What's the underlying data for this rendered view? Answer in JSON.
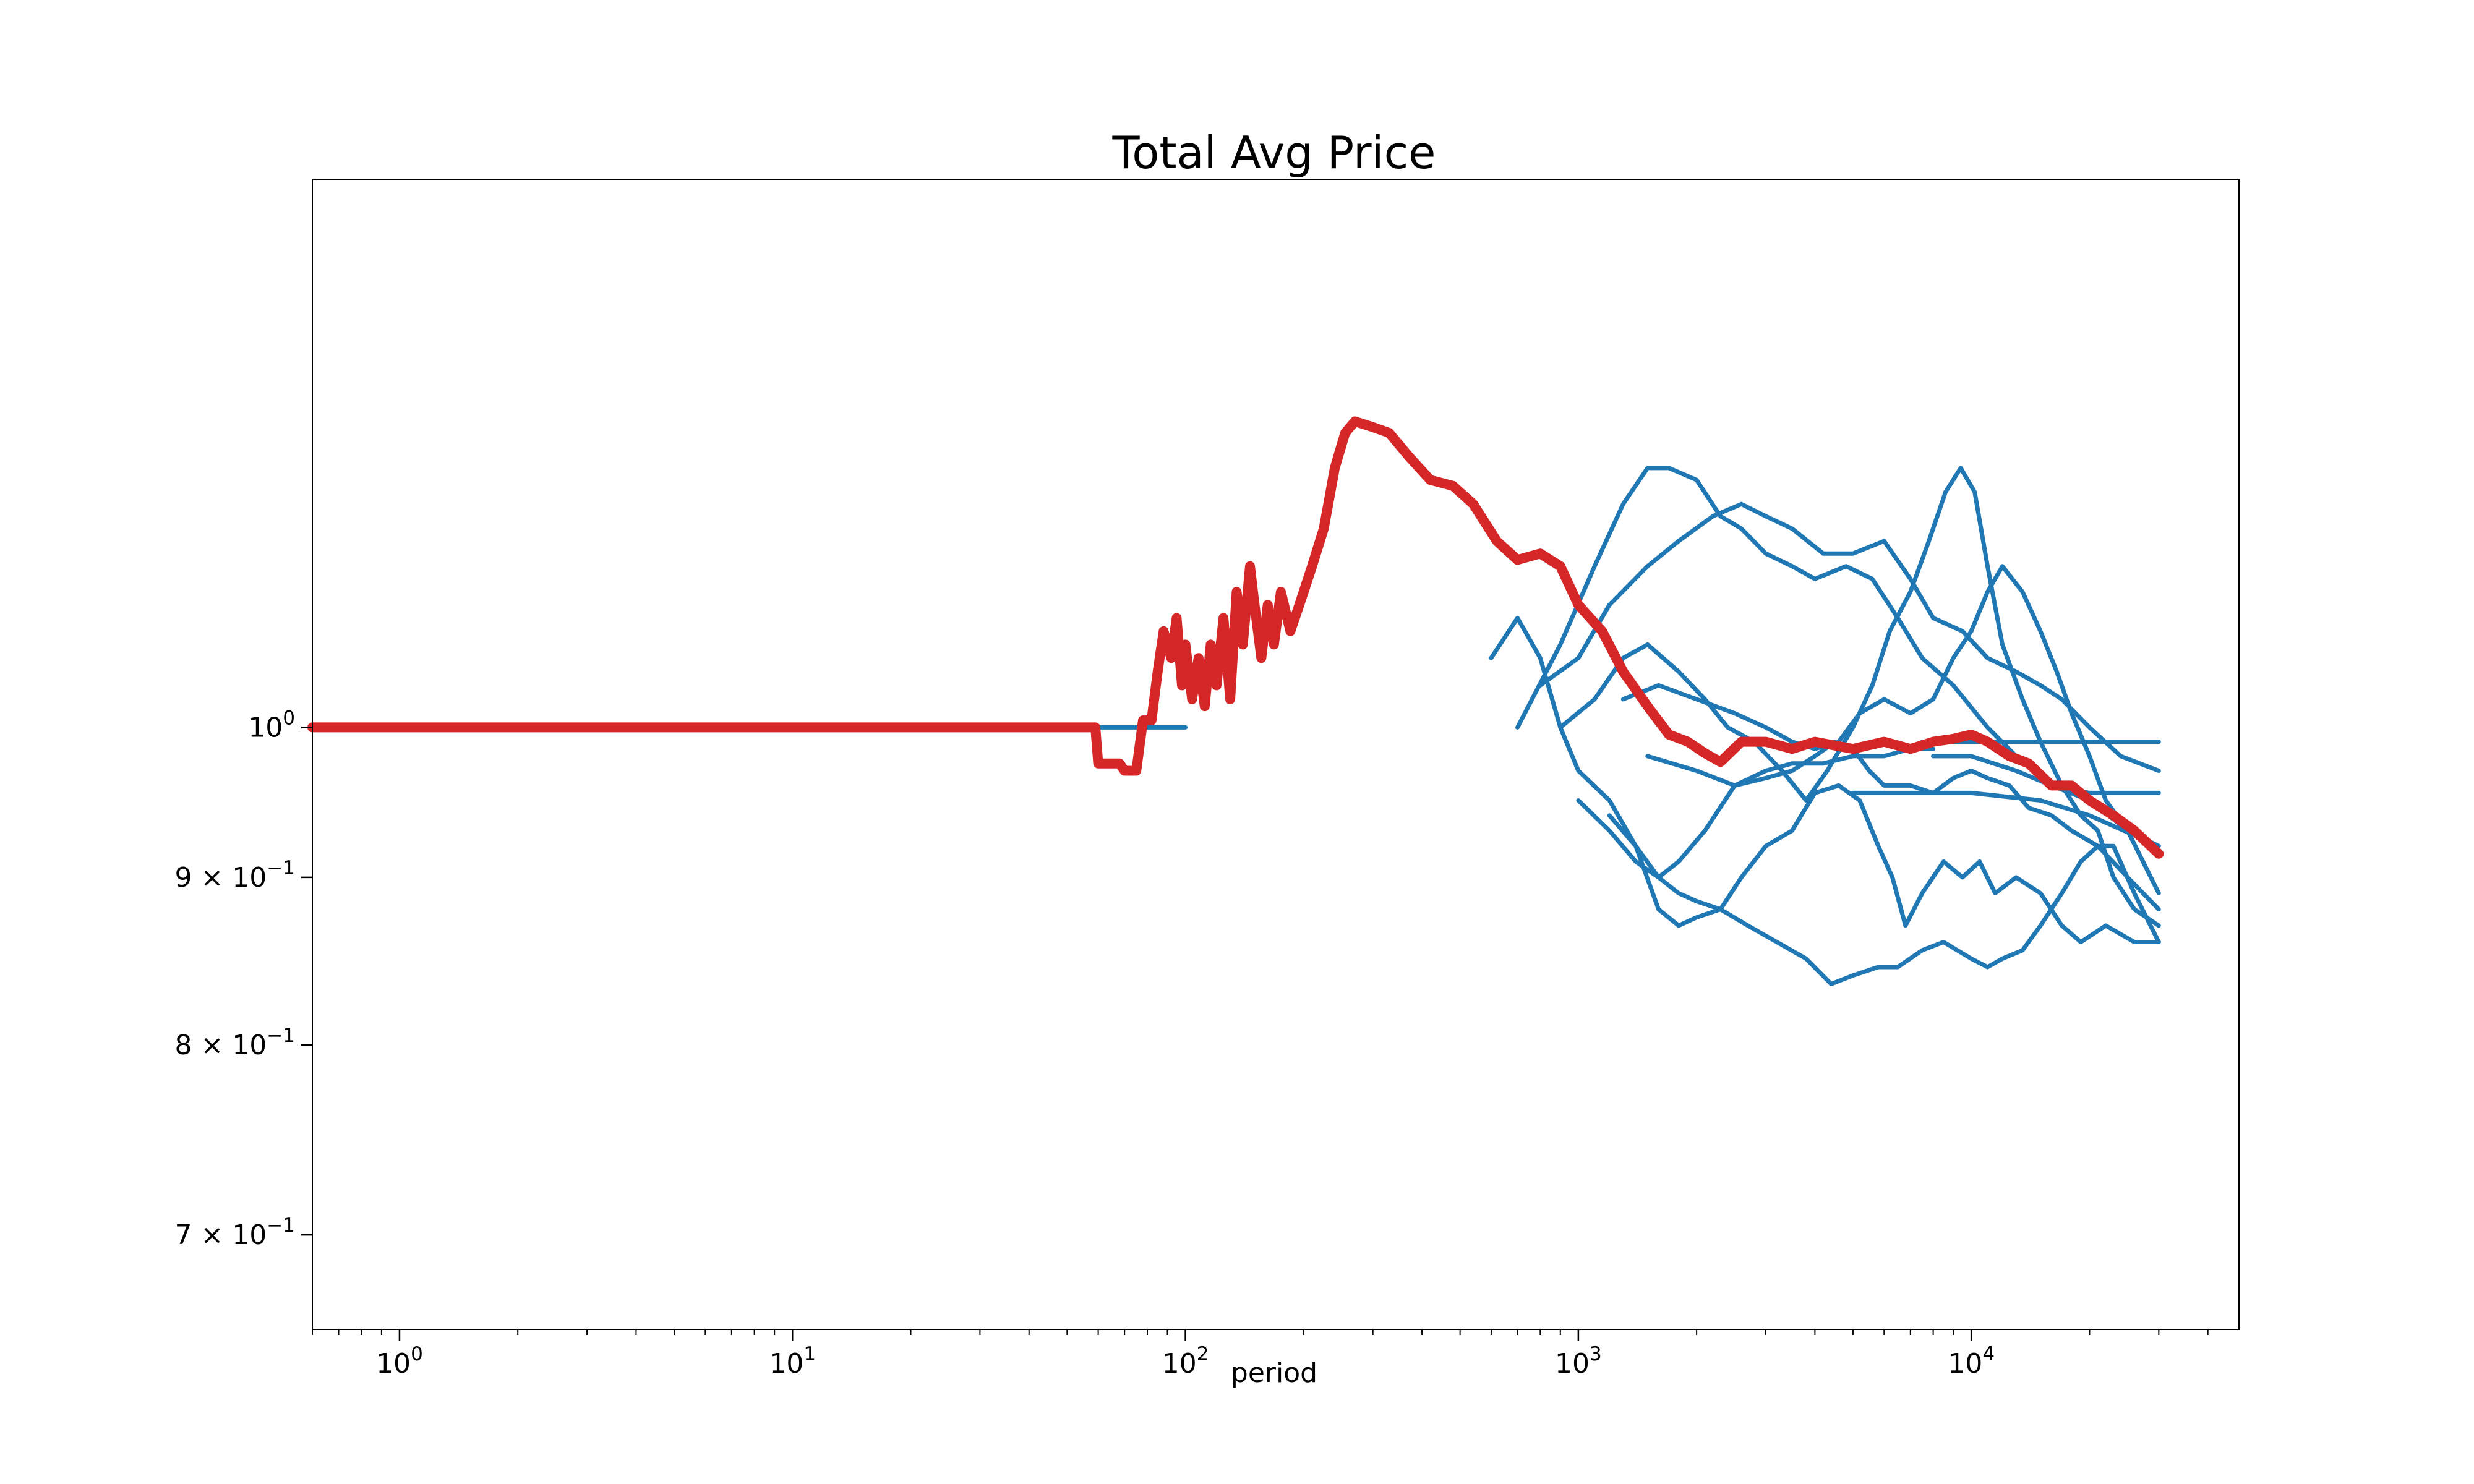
{
  "chart_data": {
    "type": "line",
    "title": "Total Avg Price",
    "xlabel": "period",
    "ylabel": "",
    "xscale": "log",
    "yscale": "log",
    "xlim": [
      0.6,
      48000
    ],
    "ylim": [
      0.655,
      1.47
    ],
    "grid": false,
    "x_ticks": [
      {
        "value": 1,
        "base": "10",
        "exp": "0"
      },
      {
        "value": 10,
        "base": "10",
        "exp": "1"
      },
      {
        "value": 100,
        "base": "10",
        "exp": "2"
      },
      {
        "value": 1000,
        "base": "10",
        "exp": "3"
      },
      {
        "value": 10000,
        "base": "10",
        "exp": "4"
      }
    ],
    "y_ticks": [
      {
        "value": 1.0,
        "mant": "",
        "base": "10",
        "exp": "0"
      },
      {
        "value": 0.9,
        "mant": "9 × ",
        "base": "10",
        "exp": "−1"
      },
      {
        "value": 0.8,
        "mant": "8 × ",
        "base": "10",
        "exp": "−1"
      },
      {
        "value": 0.7,
        "mant": "7 × ",
        "base": "10",
        "exp": "−1"
      }
    ],
    "colors": {
      "runs": "#1f77b4",
      "average": "#d62728",
      "axes": "#000000"
    },
    "series": [
      {
        "role": "average",
        "points": [
          [
            0.6,
            1.0
          ],
          [
            59,
            1.0
          ],
          [
            60,
            0.975
          ],
          [
            68,
            0.975
          ],
          [
            70,
            0.97
          ],
          [
            75,
            0.97
          ],
          [
            78,
            1.005
          ],
          [
            82,
            1.005
          ],
          [
            85,
            1.04
          ],
          [
            88,
            1.07
          ],
          [
            92,
            1.05
          ],
          [
            95,
            1.08
          ],
          [
            98,
            1.03
          ],
          [
            100,
            1.06
          ],
          [
            104,
            1.02
          ],
          [
            108,
            1.05
          ],
          [
            112,
            1.015
          ],
          [
            116,
            1.06
          ],
          [
            120,
            1.03
          ],
          [
            125,
            1.08
          ],
          [
            130,
            1.02
          ],
          [
            135,
            1.1
          ],
          [
            140,
            1.06
          ],
          [
            146,
            1.12
          ],
          [
            150,
            1.09
          ],
          [
            156,
            1.05
          ],
          [
            162,
            1.09
          ],
          [
            168,
            1.06
          ],
          [
            175,
            1.1
          ],
          [
            185,
            1.07
          ],
          [
            195,
            1.09
          ],
          [
            210,
            1.12
          ],
          [
            225,
            1.15
          ],
          [
            240,
            1.2
          ],
          [
            255,
            1.23
          ],
          [
            270,
            1.24
          ],
          [
            300,
            1.235
          ],
          [
            330,
            1.23
          ],
          [
            370,
            1.21
          ],
          [
            420,
            1.19
          ],
          [
            480,
            1.185
          ],
          [
            540,
            1.17
          ],
          [
            620,
            1.14
          ],
          [
            700,
            1.125
          ],
          [
            800,
            1.13
          ],
          [
            900,
            1.12
          ],
          [
            1000,
            1.09
          ],
          [
            1150,
            1.07
          ],
          [
            1300,
            1.04
          ],
          [
            1500,
            1.015
          ],
          [
            1700,
            0.995
          ],
          [
            1900,
            0.99
          ],
          [
            2100,
            0.982
          ],
          [
            2300,
            0.976
          ],
          [
            2600,
            0.99
          ],
          [
            3000,
            0.99
          ],
          [
            3500,
            0.985
          ],
          [
            4000,
            0.99
          ],
          [
            5000,
            0.985
          ],
          [
            6000,
            0.99
          ],
          [
            7000,
            0.985
          ],
          [
            8000,
            0.99
          ],
          [
            9000,
            0.992
          ],
          [
            10000,
            0.995
          ],
          [
            11000,
            0.99
          ],
          [
            12500,
            0.98
          ],
          [
            14000,
            0.975
          ],
          [
            16000,
            0.96
          ],
          [
            18000,
            0.96
          ],
          [
            20000,
            0.95
          ],
          [
            23000,
            0.94
          ],
          [
            26000,
            0.93
          ],
          [
            30000,
            0.915
          ]
        ]
      },
      {
        "role": "run",
        "points": [
          [
            60,
            1.0
          ],
          [
            100,
            1.0
          ]
        ]
      },
      {
        "role": "run",
        "points": [
          [
            700,
            1.0
          ],
          [
            900,
            1.06
          ],
          [
            1100,
            1.12
          ],
          [
            1300,
            1.17
          ],
          [
            1500,
            1.2
          ],
          [
            1700,
            1.2
          ],
          [
            2000,
            1.19
          ],
          [
            2300,
            1.16
          ],
          [
            2600,
            1.15
          ],
          [
            3000,
            1.13
          ],
          [
            3500,
            1.12
          ],
          [
            4000,
            1.11
          ],
          [
            4800,
            1.12
          ],
          [
            5600,
            1.11
          ],
          [
            6500,
            1.08
          ],
          [
            7500,
            1.05
          ],
          [
            9000,
            1.03
          ],
          [
            11000,
            1.0
          ],
          [
            13000,
            0.98
          ],
          [
            16000,
            0.96
          ],
          [
            20000,
            0.95
          ],
          [
            25000,
            0.93
          ],
          [
            30000,
            0.92
          ]
        ]
      },
      {
        "role": "run",
        "points": [
          [
            800,
            1.03
          ],
          [
            1000,
            1.05
          ],
          [
            1200,
            1.09
          ],
          [
            1500,
            1.12
          ],
          [
            1800,
            1.14
          ],
          [
            2200,
            1.16
          ],
          [
            2600,
            1.17
          ],
          [
            3000,
            1.16
          ],
          [
            3500,
            1.15
          ],
          [
            4200,
            1.13
          ],
          [
            5000,
            1.13
          ],
          [
            6000,
            1.14
          ],
          [
            7000,
            1.11
          ],
          [
            8000,
            1.08
          ],
          [
            9500,
            1.07
          ],
          [
            11000,
            1.05
          ],
          [
            13000,
            1.04
          ],
          [
            15000,
            1.03
          ],
          [
            17000,
            1.02
          ],
          [
            20000,
            1.0
          ],
          [
            24000,
            0.98
          ],
          [
            30000,
            0.97
          ]
        ]
      },
      {
        "role": "run",
        "points": [
          [
            900,
            1.0
          ],
          [
            1100,
            1.02
          ],
          [
            1300,
            1.05
          ],
          [
            1500,
            1.06
          ],
          [
            1800,
            1.04
          ],
          [
            2100,
            1.02
          ],
          [
            2400,
            1.0
          ],
          [
            2800,
            0.99
          ],
          [
            3300,
            0.97
          ],
          [
            3800,
            0.95
          ],
          [
            4300,
            0.97
          ],
          [
            5000,
            1.0
          ],
          [
            5600,
            1.03
          ],
          [
            6200,
            1.07
          ],
          [
            7000,
            1.1
          ],
          [
            7800,
            1.14
          ],
          [
            8600,
            1.18
          ],
          [
            9400,
            1.2
          ],
          [
            10200,
            1.18
          ],
          [
            11000,
            1.12
          ],
          [
            12000,
            1.06
          ],
          [
            13500,
            1.02
          ],
          [
            15000,
            0.99
          ],
          [
            17000,
            0.96
          ],
          [
            19000,
            0.94
          ],
          [
            21000,
            0.93
          ],
          [
            23000,
            0.9
          ],
          [
            26000,
            0.88
          ],
          [
            30000,
            0.87
          ]
        ]
      },
      {
        "role": "run",
        "points": [
          [
            1000,
            0.95
          ],
          [
            1200,
            0.93
          ],
          [
            1400,
            0.91
          ],
          [
            1600,
            0.9
          ],
          [
            1800,
            0.89
          ],
          [
            2000,
            0.885
          ],
          [
            2300,
            0.88
          ],
          [
            2700,
            0.87
          ],
          [
            3200,
            0.86
          ],
          [
            3800,
            0.85
          ],
          [
            4400,
            0.835
          ],
          [
            5000,
            0.84
          ],
          [
            5800,
            0.845
          ],
          [
            6500,
            0.845
          ],
          [
            7500,
            0.855
          ],
          [
            8500,
            0.86
          ],
          [
            10000,
            0.85
          ],
          [
            11000,
            0.845
          ],
          [
            12000,
            0.85
          ],
          [
            13500,
            0.855
          ],
          [
            15000,
            0.87
          ],
          [
            17000,
            0.89
          ],
          [
            19000,
            0.91
          ],
          [
            21000,
            0.92
          ],
          [
            23000,
            0.92
          ],
          [
            26000,
            0.89
          ],
          [
            30000,
            0.86
          ]
        ]
      },
      {
        "role": "run",
        "points": [
          [
            1200,
            0.94
          ],
          [
            1400,
            0.92
          ],
          [
            1600,
            0.88
          ],
          [
            1800,
            0.87
          ],
          [
            2000,
            0.875
          ],
          [
            2300,
            0.88
          ],
          [
            2600,
            0.9
          ],
          [
            3000,
            0.92
          ],
          [
            3500,
            0.93
          ],
          [
            4000,
            0.955
          ],
          [
            4600,
            0.96
          ],
          [
            5200,
            0.95
          ],
          [
            5800,
            0.92
          ],
          [
            6300,
            0.9
          ],
          [
            6800,
            0.87
          ],
          [
            7500,
            0.89
          ],
          [
            8500,
            0.91
          ],
          [
            9500,
            0.9
          ],
          [
            10500,
            0.91
          ],
          [
            11500,
            0.89
          ],
          [
            13000,
            0.9
          ],
          [
            15000,
            0.89
          ],
          [
            17000,
            0.87
          ],
          [
            19000,
            0.86
          ],
          [
            22000,
            0.87
          ],
          [
            26000,
            0.86
          ],
          [
            30000,
            0.86
          ]
        ]
      },
      {
        "role": "run",
        "points": [
          [
            1300,
            1.02
          ],
          [
            1600,
            1.03
          ],
          [
            2000,
            1.02
          ],
          [
            2500,
            1.01
          ],
          [
            3000,
            1.0
          ],
          [
            3500,
            0.99
          ],
          [
            4000,
            0.985
          ],
          [
            4600,
            0.99
          ],
          [
            5200,
            1.01
          ],
          [
            6000,
            1.02
          ],
          [
            7000,
            1.01
          ],
          [
            8000,
            1.02
          ],
          [
            9000,
            1.05
          ],
          [
            10000,
            1.07
          ],
          [
            11000,
            1.1
          ],
          [
            12000,
            1.12
          ],
          [
            13500,
            1.1
          ],
          [
            15000,
            1.07
          ],
          [
            16500,
            1.04
          ],
          [
            18000,
            1.01
          ],
          [
            20000,
            0.98
          ],
          [
            22000,
            0.95
          ],
          [
            25000,
            0.93
          ],
          [
            30000,
            0.89
          ]
        ]
      },
      {
        "role": "run",
        "points": [
          [
            1500,
            0.98
          ],
          [
            2000,
            0.97
          ],
          [
            2500,
            0.96
          ],
          [
            3000,
            0.965
          ],
          [
            3500,
            0.97
          ],
          [
            4000,
            0.98
          ],
          [
            4500,
            0.99
          ],
          [
            5000,
            0.985
          ],
          [
            5500,
            0.97
          ],
          [
            6000,
            0.96
          ],
          [
            7000,
            0.96
          ],
          [
            8000,
            0.955
          ],
          [
            9000,
            0.965
          ],
          [
            10000,
            0.97
          ],
          [
            11000,
            0.965
          ],
          [
            12500,
            0.96
          ],
          [
            14000,
            0.945
          ],
          [
            16000,
            0.94
          ],
          [
            18000,
            0.93
          ],
          [
            21000,
            0.92
          ],
          [
            25000,
            0.9
          ],
          [
            30000,
            0.88
          ]
        ]
      },
      {
        "role": "run",
        "points": [
          [
            7500,
            0.99
          ],
          [
            30000,
            0.99
          ]
        ]
      },
      {
        "role": "run",
        "points": [
          [
            8000,
            0.98
          ],
          [
            10000,
            0.98
          ],
          [
            13000,
            0.97
          ],
          [
            16000,
            0.96
          ],
          [
            20000,
            0.955
          ],
          [
            25000,
            0.955
          ],
          [
            30000,
            0.955
          ]
        ]
      },
      {
        "role": "run",
        "points": [
          [
            5000,
            0.955
          ],
          [
            10000,
            0.955
          ],
          [
            15000,
            0.95
          ],
          [
            20000,
            0.94
          ],
          [
            30000,
            0.92
          ]
        ]
      },
      {
        "role": "run",
        "points": [
          [
            600,
            1.05
          ],
          [
            700,
            1.08
          ],
          [
            800,
            1.05
          ],
          [
            900,
            1.0
          ],
          [
            1000,
            0.97
          ],
          [
            1200,
            0.95
          ],
          [
            1400,
            0.92
          ],
          [
            1600,
            0.9
          ],
          [
            1800,
            0.91
          ],
          [
            2100,
            0.93
          ],
          [
            2500,
            0.96
          ],
          [
            3000,
            0.97
          ],
          [
            3500,
            0.975
          ],
          [
            4200,
            0.975
          ],
          [
            5000,
            0.98
          ],
          [
            6000,
            0.98
          ],
          [
            7000,
            0.985
          ],
          [
            8000,
            0.985
          ]
        ]
      }
    ]
  }
}
